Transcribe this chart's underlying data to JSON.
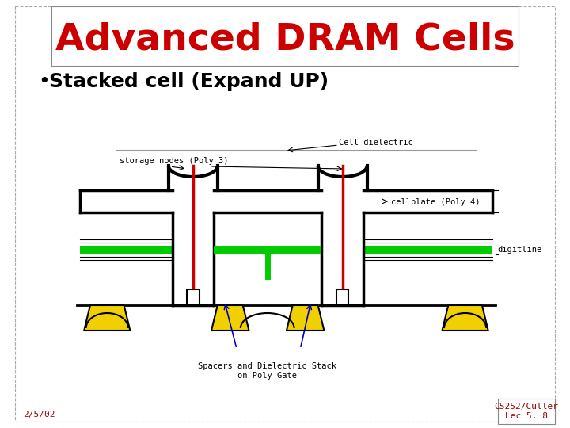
{
  "title": "Advanced DRAM Cells",
  "title_color": "#cc0000",
  "title_fontsize": 34,
  "title_font": "Comic Sans MS",
  "bullet_text": "Stacked cell (Expand UP)",
  "bullet_fontsize": 18,
  "bullet_font": "Courier New",
  "bg_color": "#ffffff",
  "footer_left": "2/5/02",
  "footer_right": "CS252/Culler\nLec 5. 8",
  "footer_color": "#990000",
  "footer_fontsize": 8,
  "diagram_labels": {
    "cell_dielectric": "Cell dielectric",
    "storage_nodes": "storage nodes (Poly 3)",
    "cellplate": "cellplate (Poly 4)",
    "digitline": "digitline",
    "spacers": "Spacers and Dielectric Stack\non Poly Gate"
  }
}
